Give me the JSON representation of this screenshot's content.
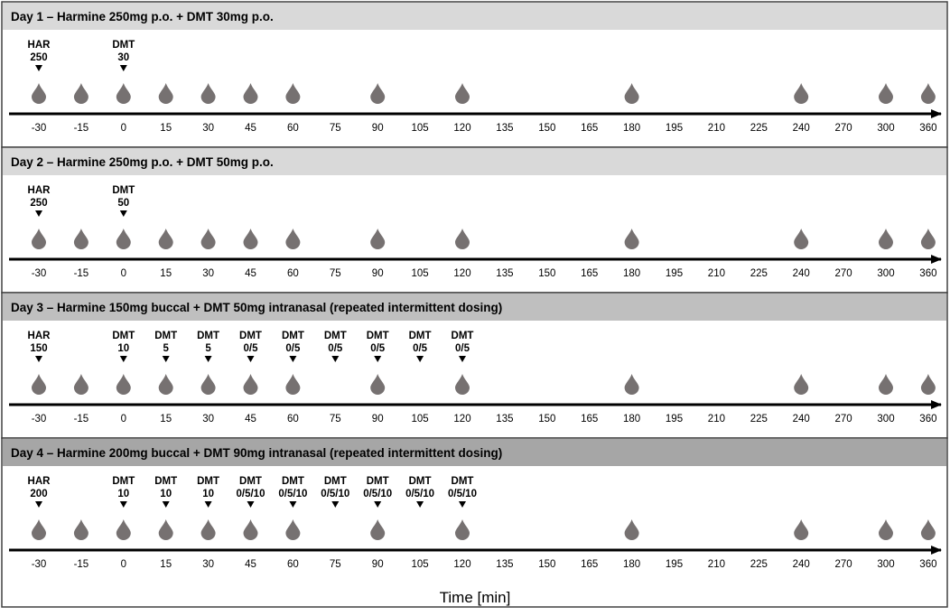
{
  "x_axis_title": "Time [min]",
  "ticks": [
    "-30",
    "-15",
    "0",
    "15",
    "30",
    "45",
    "60",
    "75",
    "90",
    "105",
    "120",
    "135",
    "150",
    "165",
    "180",
    "195",
    "210",
    "225",
    "240",
    "270",
    "300",
    "360"
  ],
  "sample_ticks": [
    "-30",
    "-15",
    "0",
    "15",
    "30",
    "45",
    "60",
    "90",
    "120",
    "180",
    "240",
    "300",
    "360"
  ],
  "colors": {
    "drop": "#767171",
    "axis": "#000000",
    "border": "#404040",
    "header_light": "#d9d9d9",
    "header_dark": "#bfbfbf",
    "header_darker": "#a6a6a6"
  },
  "panels": [
    {
      "title": "Day 1 – Harmine 250mg p.o. + DMT 30mg p.o.",
      "header_color": "#d9d9d9",
      "doses": [
        {
          "tick": "-30",
          "lines": [
            "HAR",
            "250"
          ]
        },
        {
          "tick": "0",
          "lines": [
            "DMT",
            "30"
          ]
        }
      ]
    },
    {
      "title": "Day 2 – Harmine 250mg p.o. + DMT 50mg p.o.",
      "header_color": "#d9d9d9",
      "doses": [
        {
          "tick": "-30",
          "lines": [
            "HAR",
            "250"
          ]
        },
        {
          "tick": "0",
          "lines": [
            "DMT",
            "50"
          ]
        }
      ]
    },
    {
      "title": "Day 3 – Harmine 150mg buccal + DMT 50mg intranasal (repeated intermittent dosing)",
      "header_color": "#bfbfbf",
      "doses": [
        {
          "tick": "-30",
          "lines": [
            "HAR",
            "150"
          ]
        },
        {
          "tick": "0",
          "lines": [
            "DMT",
            "10"
          ]
        },
        {
          "tick": "15",
          "lines": [
            "DMT",
            "5"
          ]
        },
        {
          "tick": "30",
          "lines": [
            "DMT",
            "5"
          ]
        },
        {
          "tick": "45",
          "lines": [
            "DMT",
            "0/5"
          ]
        },
        {
          "tick": "60",
          "lines": [
            "DMT",
            "0/5"
          ]
        },
        {
          "tick": "75",
          "lines": [
            "DMT",
            "0/5"
          ]
        },
        {
          "tick": "90",
          "lines": [
            "DMT",
            "0/5"
          ]
        },
        {
          "tick": "105",
          "lines": [
            "DMT",
            "0/5"
          ]
        },
        {
          "tick": "120",
          "lines": [
            "DMT",
            "0/5"
          ]
        }
      ]
    },
    {
      "title": "Day 4 – Harmine 200mg buccal + DMT 90mg intranasal (repeated intermittent dosing)",
      "header_color": "#a6a6a6",
      "doses": [
        {
          "tick": "-30",
          "lines": [
            "HAR",
            "200"
          ]
        },
        {
          "tick": "0",
          "lines": [
            "DMT",
            "10"
          ]
        },
        {
          "tick": "15",
          "lines": [
            "DMT",
            "10"
          ]
        },
        {
          "tick": "30",
          "lines": [
            "DMT",
            "10"
          ]
        },
        {
          "tick": "45",
          "lines": [
            "DMT",
            "0/5/10"
          ]
        },
        {
          "tick": "60",
          "lines": [
            "DMT",
            "0/5/10"
          ]
        },
        {
          "tick": "75",
          "lines": [
            "DMT",
            "0/5/10"
          ]
        },
        {
          "tick": "90",
          "lines": [
            "DMT",
            "0/5/10"
          ]
        },
        {
          "tick": "105",
          "lines": [
            "DMT",
            "0/5/10"
          ]
        },
        {
          "tick": "120",
          "lines": [
            "DMT",
            "0/5/10"
          ]
        }
      ]
    }
  ]
}
